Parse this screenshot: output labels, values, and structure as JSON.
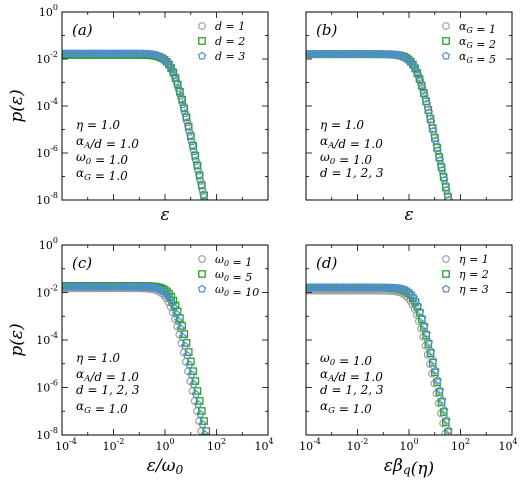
{
  "chart_data": [
    {
      "type": "scatter",
      "panel_label": "(a)",
      "ylabel": "p(ε)",
      "xlabel": "ε",
      "x_scale": "log",
      "y_scale": "log",
      "xlim": [
        0.0001,
        10000
      ],
      "ylim": [
        1e-08,
        1
      ],
      "x_ticks_visible": false,
      "y_tick_labels": [
        "10^0",
        "10^-2",
        "10^-4",
        "10^-6",
        "10^-8"
      ],
      "annotation": [
        "η = 1.0",
        "α_A/d = 1.0",
        "ω_0 = 1.0",
        "α_G = 1.0"
      ],
      "legend_position": "top-right",
      "series": [
        {
          "name": "d = 1",
          "color": "#a0a0a0",
          "marker": "circle",
          "plateau": 0.016,
          "scale": 1.0
        },
        {
          "name": "d = 2",
          "color": "#2ca02c",
          "marker": "square",
          "plateau": 0.015,
          "scale": 1.05
        },
        {
          "name": "d = 3",
          "color": "#4f8fcf",
          "marker": "pentagon",
          "plateau": 0.017,
          "scale": 0.97
        }
      ]
    },
    {
      "type": "scatter",
      "panel_label": "(b)",
      "ylabel": "",
      "xlabel": "ε",
      "x_scale": "log",
      "y_scale": "log",
      "xlim": [
        0.0001,
        10000
      ],
      "ylim": [
        1e-08,
        1
      ],
      "x_ticks_visible": false,
      "annotation": [
        "η = 1.0",
        "α_A/d = 1.0",
        "ω_0 = 1.0",
        "d = 1, 2, 3"
      ],
      "legend_position": "top-right",
      "series": [
        {
          "name": "α_G = 1",
          "color": "#a0a0a0",
          "marker": "circle",
          "plateau": 0.016,
          "scale": 1.0
        },
        {
          "name": "α_G = 2",
          "color": "#2ca02c",
          "marker": "square",
          "plateau": 0.016,
          "scale": 1.0
        },
        {
          "name": "α_G = 5",
          "color": "#4f8fcf",
          "marker": "pentagon",
          "plateau": 0.016,
          "scale": 1.0
        }
      ]
    },
    {
      "type": "scatter",
      "panel_label": "(c)",
      "ylabel": "p(ε)",
      "xlabel": "ε/ω_0",
      "x_scale": "log",
      "y_scale": "log",
      "xlim": [
        0.0001,
        10000
      ],
      "ylim": [
        1e-08,
        1
      ],
      "x_tick_labels": [
        "10^-4",
        "10^-2",
        "10^0",
        "10^2",
        "10^4"
      ],
      "y_tick_labels": [
        "10^0",
        "10^-2",
        "10^-4",
        "10^-6",
        "10^-8"
      ],
      "annotation": [
        "η = 1.0",
        "α_A/d = 1.0",
        "d = 1, 2, 3",
        "α_G = 1.0"
      ],
      "legend_position": "top-right",
      "series": [
        {
          "name": "ω_0 = 1",
          "color": "#a0a0a0",
          "marker": "circle",
          "plateau": 0.015,
          "scale": 0.8
        },
        {
          "name": "ω_0 = 5",
          "color": "#2ca02c",
          "marker": "square",
          "plateau": 0.019,
          "scale": 1.2
        },
        {
          "name": "ω_0 = 10",
          "color": "#4f8fcf",
          "marker": "pentagon",
          "plateau": 0.017,
          "scale": 1.0
        }
      ]
    },
    {
      "type": "scatter",
      "panel_label": "(d)",
      "ylabel": "",
      "xlabel": "εβ_q(η)",
      "x_scale": "log",
      "y_scale": "log",
      "xlim": [
        0.0001,
        10000
      ],
      "ylim": [
        1e-08,
        1
      ],
      "x_tick_labels": [
        "10^-4",
        "10^-2",
        "10^0",
        "10^2",
        "10^4"
      ],
      "annotation": [
        "ω_0 = 1.0",
        "α_A/d = 1.0",
        "d = 1, 2, 3",
        "α_G = 1.0"
      ],
      "legend_position": "top-right",
      "series": [
        {
          "name": "η = 1",
          "color": "#a0a0a0",
          "marker": "circle",
          "plateau": 0.012,
          "scale": 0.8
        },
        {
          "name": "η = 2",
          "color": "#2ca02c",
          "marker": "square",
          "plateau": 0.016,
          "scale": 1.0
        },
        {
          "name": "η = 3",
          "color": "#4f8fcf",
          "marker": "pentagon",
          "plateau": 0.016,
          "scale": 1.1
        }
      ]
    }
  ]
}
